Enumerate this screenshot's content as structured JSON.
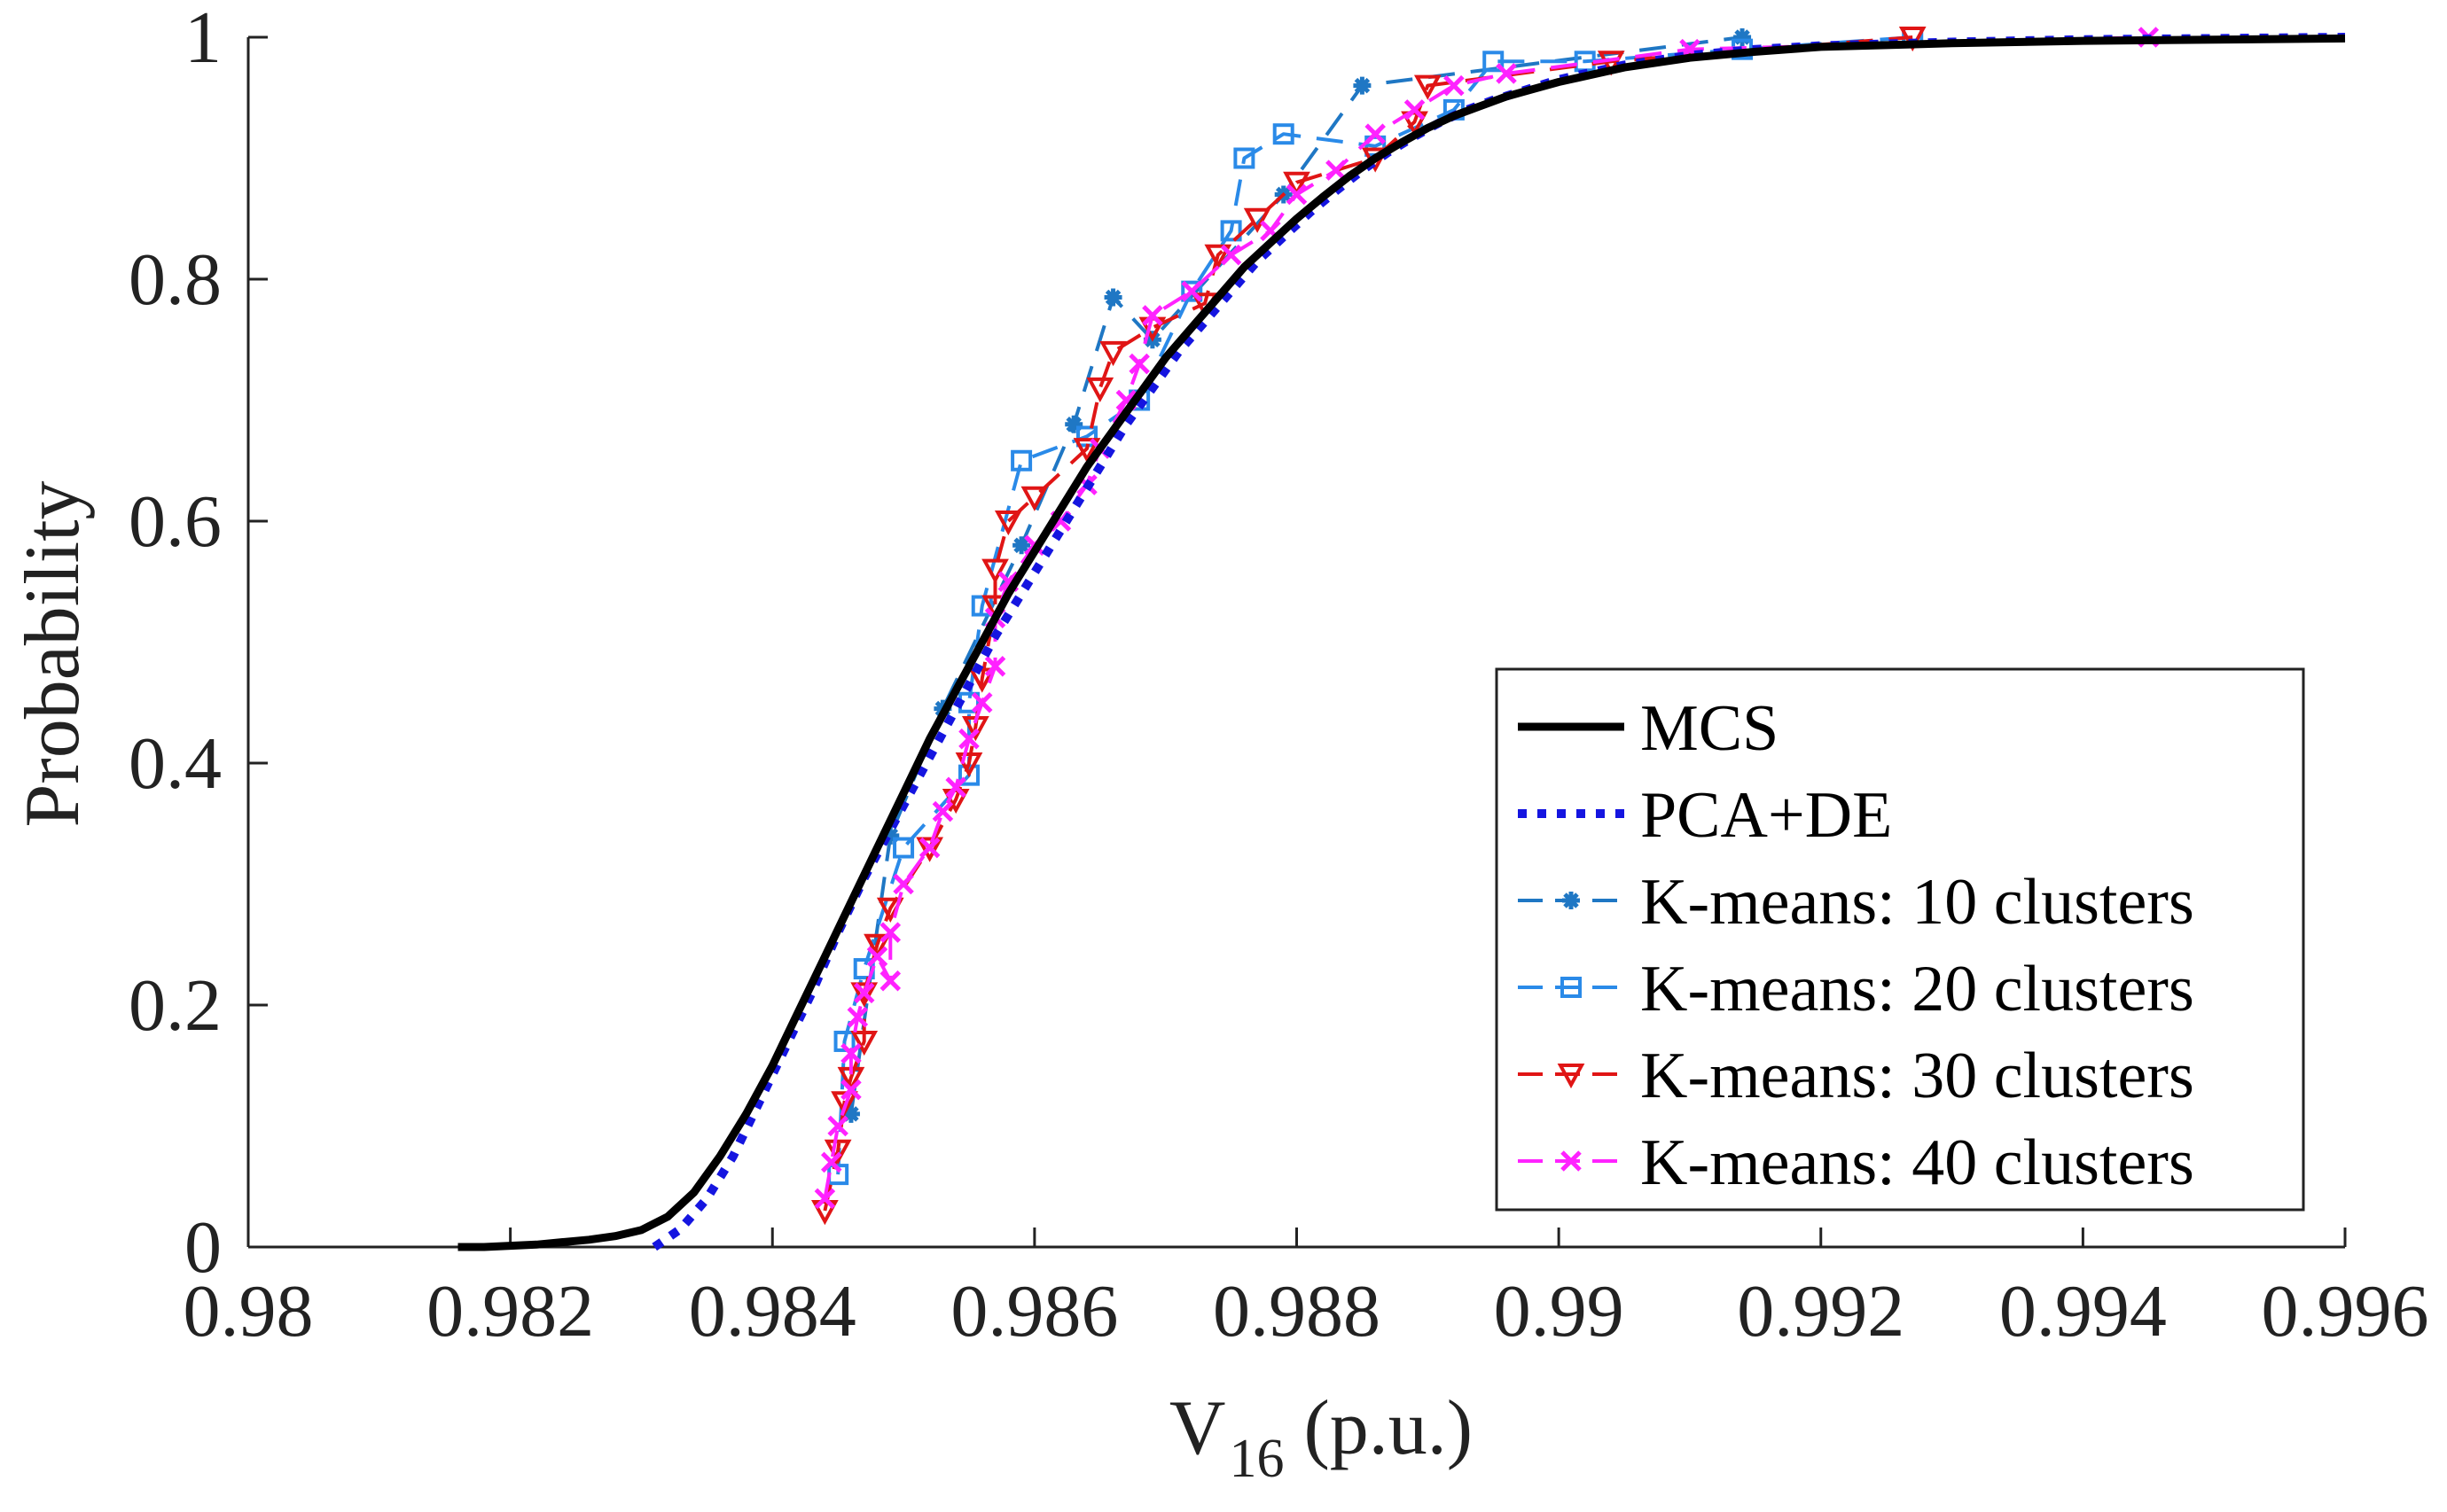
{
  "chart_data": {
    "type": "line",
    "title": "",
    "xlabel_main": "V",
    "xlabel_sub": "16",
    "xlabel_unit": "(p.u.)",
    "ylabel": "Probability",
    "xlim": [
      0.98,
      0.996
    ],
    "ylim": [
      0,
      1
    ],
    "xticks": [
      0.98,
      0.982,
      0.984,
      0.986,
      0.988,
      0.99,
      0.992,
      0.994,
      0.996
    ],
    "xtick_labels": [
      "0.98",
      "0.982",
      "0.984",
      "0.986",
      "0.988",
      "0.99",
      "0.992",
      "0.994",
      "0.996"
    ],
    "yticks": [
      0,
      0.2,
      0.4,
      0.6,
      0.8,
      1
    ],
    "ytick_labels": [
      "0",
      "0.2",
      "0.4",
      "0.6",
      "0.8",
      "1"
    ],
    "grid": false,
    "legend_position": "bottom-right",
    "series": [
      {
        "name": "MCS",
        "color": "#000000",
        "style": "solid",
        "marker": "none",
        "points": [
          [
            0.9816,
            0
          ],
          [
            0.9818,
            0
          ],
          [
            0.982,
            0.001
          ],
          [
            0.9822,
            0.002
          ],
          [
            0.9824,
            0.004
          ],
          [
            0.9826,
            0.006
          ],
          [
            0.9828,
            0.009
          ],
          [
            0.983,
            0.014
          ],
          [
            0.9832,
            0.025
          ],
          [
            0.9834,
            0.045
          ],
          [
            0.9836,
            0.075
          ],
          [
            0.9838,
            0.11
          ],
          [
            0.984,
            0.15
          ],
          [
            0.9842,
            0.195
          ],
          [
            0.9844,
            0.24
          ],
          [
            0.9846,
            0.285
          ],
          [
            0.9848,
            0.33
          ],
          [
            0.985,
            0.375
          ],
          [
            0.9852,
            0.42
          ],
          [
            0.9854,
            0.46
          ],
          [
            0.9856,
            0.5
          ],
          [
            0.9858,
            0.54
          ],
          [
            0.986,
            0.575
          ],
          [
            0.9862,
            0.61
          ],
          [
            0.9864,
            0.645
          ],
          [
            0.9866,
            0.675
          ],
          [
            0.9868,
            0.705
          ],
          [
            0.987,
            0.735
          ],
          [
            0.9872,
            0.76
          ],
          [
            0.9874,
            0.785
          ],
          [
            0.9876,
            0.81
          ],
          [
            0.9878,
            0.83
          ],
          [
            0.988,
            0.85
          ],
          [
            0.9882,
            0.868
          ],
          [
            0.9884,
            0.885
          ],
          [
            0.9886,
            0.9
          ],
          [
            0.9888,
            0.913
          ],
          [
            0.989,
            0.925
          ],
          [
            0.9892,
            0.935
          ],
          [
            0.9894,
            0.943
          ],
          [
            0.9896,
            0.951
          ],
          [
            0.9898,
            0.957
          ],
          [
            0.99,
            0.963
          ],
          [
            0.9905,
            0.975
          ],
          [
            0.991,
            0.983
          ],
          [
            0.9915,
            0.988
          ],
          [
            0.992,
            0.992
          ],
          [
            0.993,
            0.995
          ],
          [
            0.994,
            0.997
          ],
          [
            0.995,
            0.998
          ],
          [
            0.996,
            0.999
          ]
        ]
      },
      {
        "name": "PCA+DE",
        "color": "#1515e0",
        "style": "dotted",
        "marker": "none",
        "points": [
          [
            0.9831,
            0
          ],
          [
            0.9833,
            0.015
          ],
          [
            0.9835,
            0.04
          ],
          [
            0.9837,
            0.075
          ],
          [
            0.9839,
            0.12
          ],
          [
            0.9841,
            0.165
          ],
          [
            0.9843,
            0.21
          ],
          [
            0.9845,
            0.26
          ],
          [
            0.9847,
            0.305
          ],
          [
            0.9849,
            0.345
          ],
          [
            0.9851,
            0.385
          ],
          [
            0.9853,
            0.425
          ],
          [
            0.9855,
            0.465
          ],
          [
            0.9857,
            0.505
          ],
          [
            0.9859,
            0.54
          ],
          [
            0.9861,
            0.575
          ],
          [
            0.9863,
            0.61
          ],
          [
            0.9865,
            0.645
          ],
          [
            0.9867,
            0.68
          ],
          [
            0.9869,
            0.71
          ],
          [
            0.9871,
            0.74
          ],
          [
            0.9873,
            0.765
          ],
          [
            0.9875,
            0.79
          ],
          [
            0.9877,
            0.815
          ],
          [
            0.9879,
            0.835
          ],
          [
            0.9881,
            0.855
          ],
          [
            0.9883,
            0.873
          ],
          [
            0.9885,
            0.89
          ],
          [
            0.9887,
            0.905
          ],
          [
            0.9889,
            0.918
          ],
          [
            0.9891,
            0.93
          ],
          [
            0.9893,
            0.94
          ],
          [
            0.9895,
            0.948
          ],
          [
            0.99,
            0.965
          ],
          [
            0.9905,
            0.977
          ],
          [
            0.991,
            0.985
          ],
          [
            0.9915,
            0.99
          ],
          [
            0.992,
            0.993
          ],
          [
            0.993,
            0.996
          ],
          [
            0.994,
            0.998
          ],
          [
            0.995,
            0.999
          ],
          [
            0.996,
            1
          ]
        ]
      },
      {
        "name": "K-means: 10 clusters",
        "color": "#1f77c4",
        "style": "dashed",
        "marker": "asterisk",
        "points": [
          [
            0.9846,
            0.11
          ],
          [
            0.9849,
            0.34
          ],
          [
            0.9853,
            0.445
          ],
          [
            0.9859,
            0.58
          ],
          [
            0.9863,
            0.68
          ],
          [
            0.9866,
            0.785
          ],
          [
            0.9869,
            0.75
          ],
          [
            0.9879,
            0.87
          ],
          [
            0.9885,
            0.96
          ],
          [
            0.9914,
            1
          ]
        ]
      },
      {
        "name": "K-means: 20 clusters",
        "color": "#2a8ae8",
        "style": "dashed",
        "marker": "square",
        "points": [
          [
            0.9845,
            0.06
          ],
          [
            0.98455,
            0.17
          ],
          [
            0.9847,
            0.23
          ],
          [
            0.985,
            0.33
          ],
          [
            0.9855,
            0.39
          ],
          [
            0.9855,
            0.45
          ],
          [
            0.9856,
            0.53
          ],
          [
            0.9859,
            0.65
          ],
          [
            0.9864,
            0.67
          ],
          [
            0.9868,
            0.7
          ],
          [
            0.9872,
            0.79
          ],
          [
            0.9875,
            0.84
          ],
          [
            0.9876,
            0.9
          ],
          [
            0.9879,
            0.92
          ],
          [
            0.9886,
            0.91
          ],
          [
            0.9892,
            0.94
          ],
          [
            0.9895,
            0.98
          ],
          [
            0.9902,
            0.98
          ],
          [
            0.9914,
            0.99
          ],
          [
            0.9927,
            1
          ]
        ]
      },
      {
        "name": "K-means: 30 clusters",
        "color": "#e01515",
        "style": "dashed",
        "marker": "triangle-down",
        "points": [
          [
            0.9844,
            0.03
          ],
          [
            0.9845,
            0.08
          ],
          [
            0.98455,
            0.12
          ],
          [
            0.9846,
            0.14
          ],
          [
            0.9847,
            0.17
          ],
          [
            0.9847,
            0.21
          ],
          [
            0.9848,
            0.25
          ],
          [
            0.9849,
            0.28
          ],
          [
            0.9852,
            0.33
          ],
          [
            0.9854,
            0.37
          ],
          [
            0.9855,
            0.4
          ],
          [
            0.98555,
            0.43
          ],
          [
            0.9856,
            0.47
          ],
          [
            0.9857,
            0.53
          ],
          [
            0.9857,
            0.56
          ],
          [
            0.9858,
            0.6
          ],
          [
            0.986,
            0.62
          ],
          [
            0.9864,
            0.66
          ],
          [
            0.9865,
            0.71
          ],
          [
            0.9866,
            0.74
          ],
          [
            0.9869,
            0.76
          ],
          [
            0.9873,
            0.78
          ],
          [
            0.9874,
            0.82
          ],
          [
            0.9877,
            0.85
          ],
          [
            0.988,
            0.88
          ],
          [
            0.9886,
            0.9
          ],
          [
            0.9889,
            0.93
          ],
          [
            0.989,
            0.96
          ],
          [
            0.9904,
            0.98
          ],
          [
            0.9927,
            1
          ]
        ]
      },
      {
        "name": "K-means: 40 clusters",
        "color": "#ff22ff",
        "style": "dashed",
        "marker": "x",
        "points": [
          [
            0.9844,
            0.04
          ],
          [
            0.98445,
            0.07
          ],
          [
            0.9845,
            0.1
          ],
          [
            0.9846,
            0.13
          ],
          [
            0.9846,
            0.16
          ],
          [
            0.98465,
            0.19
          ],
          [
            0.9847,
            0.21
          ],
          [
            0.9848,
            0.24
          ],
          [
            0.9849,
            0.22
          ],
          [
            0.9849,
            0.26
          ],
          [
            0.985,
            0.3
          ],
          [
            0.9852,
            0.33
          ],
          [
            0.9853,
            0.36
          ],
          [
            0.9854,
            0.38
          ],
          [
            0.9855,
            0.42
          ],
          [
            0.9856,
            0.45
          ],
          [
            0.9857,
            0.48
          ],
          [
            0.9857,
            0.52
          ],
          [
            0.9858,
            0.55
          ],
          [
            0.986,
            0.58
          ],
          [
            0.9862,
            0.6
          ],
          [
            0.9864,
            0.63
          ],
          [
            0.9865,
            0.66
          ],
          [
            0.9867,
            0.7
          ],
          [
            0.9868,
            0.73
          ],
          [
            0.9869,
            0.77
          ],
          [
            0.9872,
            0.79
          ],
          [
            0.9875,
            0.82
          ],
          [
            0.9878,
            0.84
          ],
          [
            0.988,
            0.87
          ],
          [
            0.9883,
            0.89
          ],
          [
            0.9886,
            0.92
          ],
          [
            0.9889,
            0.94
          ],
          [
            0.9892,
            0.96
          ],
          [
            0.9896,
            0.97
          ],
          [
            0.991,
            0.99
          ],
          [
            0.9945,
            1
          ]
        ]
      }
    ]
  }
}
